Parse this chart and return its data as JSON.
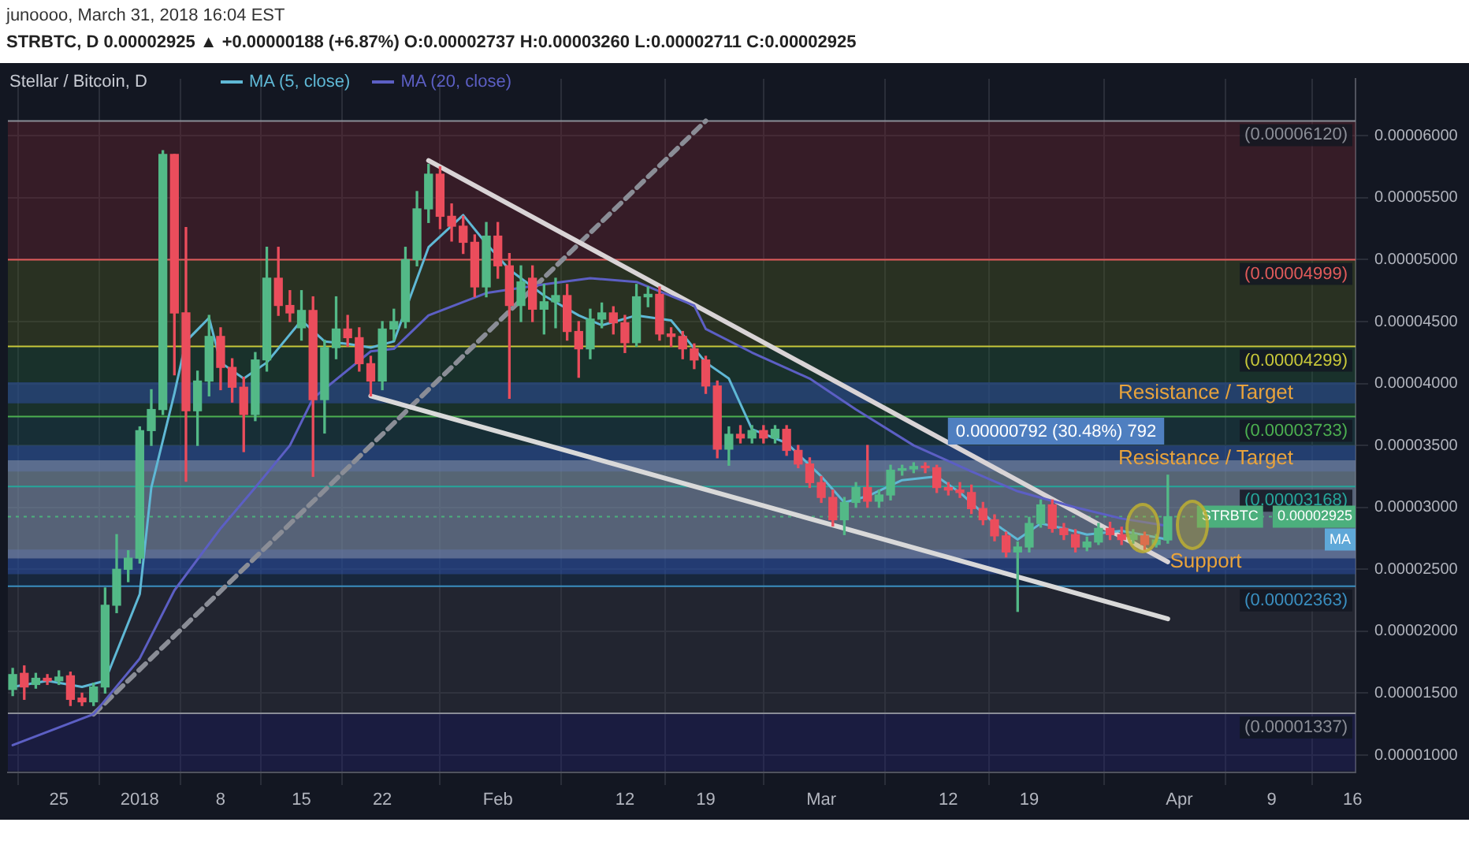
{
  "chart_data": {
    "type": "candlestick",
    "title": "Stellar / Bitcoin, D",
    "subtitle": "junoooo, March 31, 2018 16:04 EST",
    "annotations": [
      "STRBTC, D 0.00002925 ▲ +0.00000188 (+6.87%) O:0.00002737 H:0.00003260 L:0.00002711 C:0.00002925",
      {
        "text": "STRBTC",
        "x": "2018-04-08T06:00",
        "y": 2.925e-05
      },
      {
        "text": "MA",
        "x": "2018-04-16T06:00",
        "y": 2.74e-05
      }
    ],
    "x": [
      "2017-12-21",
      "2017-12-22",
      "2017-12-23",
      "2017-12-24",
      "2017-12-25",
      "2017-12-26",
      "2017-12-27",
      "2017-12-28",
      "2017-12-29",
      "2017-12-30",
      "2017-12-31",
      "2018-01-01",
      "2018-01-02",
      "2018-01-03",
      "2018-01-04",
      "2018-01-05",
      "2018-01-06",
      "2018-01-07",
      "2018-01-08",
      "2018-01-09",
      "2018-01-10",
      "2018-01-11",
      "2018-01-12",
      "2018-01-13",
      "2018-01-14",
      "2018-01-15",
      "2018-01-16",
      "2018-01-17",
      "2018-01-18",
      "2018-01-19",
      "2018-01-20",
      "2018-01-21",
      "2018-01-22",
      "2018-01-23",
      "2018-01-24",
      "2018-01-25",
      "2018-01-26",
      "2018-01-27",
      "2018-01-28",
      "2018-01-29",
      "2018-01-30",
      "2018-01-31",
      "2018-02-01",
      "2018-02-02",
      "2018-02-03",
      "2018-02-04",
      "2018-02-05",
      "2018-02-06",
      "2018-02-07",
      "2018-02-08",
      "2018-02-09",
      "2018-02-10",
      "2018-02-11",
      "2018-02-12",
      "2018-02-13",
      "2018-02-14",
      "2018-02-15",
      "2018-02-16",
      "2018-02-17",
      "2018-02-18",
      "2018-02-19",
      "2018-02-20",
      "2018-02-21",
      "2018-02-22",
      "2018-02-23",
      "2018-02-24",
      "2018-02-25",
      "2018-02-26",
      "2018-02-27",
      "2018-02-28",
      "2018-03-01",
      "2018-03-02",
      "2018-03-03",
      "2018-03-04",
      "2018-03-05",
      "2018-03-06",
      "2018-03-07",
      "2018-03-08",
      "2018-03-09",
      "2018-03-10",
      "2018-03-11",
      "2018-03-12",
      "2018-03-13",
      "2018-03-14",
      "2018-03-15",
      "2018-03-16",
      "2018-03-17",
      "2018-03-18",
      "2018-03-19",
      "2018-03-20",
      "2018-03-21",
      "2018-03-22",
      "2018-03-23",
      "2018-03-24",
      "2018-03-25",
      "2018-03-26",
      "2018-03-27",
      "2018-03-28",
      "2018-03-29",
      "2018-03-30",
      "2018-03-31"
    ],
    "ohlc": [
      [
        1.53e-05,
        1.7e-05,
        1.48e-05,
        1.65e-05
      ],
      [
        1.66e-05,
        1.72e-05,
        1.45e-05,
        1.55e-05
      ],
      [
        1.57e-05,
        1.66e-05,
        1.54e-05,
        1.62e-05
      ],
      [
        1.62e-05,
        1.65e-05,
        1.57e-05,
        1.6e-05
      ],
      [
        1.6e-05,
        1.68e-05,
        1.57e-05,
        1.63e-05
      ],
      [
        1.64e-05,
        1.67e-05,
        1.4e-05,
        1.45e-05
      ],
      [
        1.46e-05,
        1.5e-05,
        1.4e-05,
        1.43e-05
      ],
      [
        1.43e-05,
        1.58e-05,
        1.4e-05,
        1.55e-05
      ],
      [
        1.55e-05,
        2.35e-05,
        1.5e-05,
        2.21e-05
      ],
      [
        2.21e-05,
        2.78e-05,
        2.15e-05,
        2.5e-05
      ],
      [
        2.5e-05,
        2.65e-05,
        2.4e-05,
        2.59e-05
      ],
      [
        2.59e-05,
        3.65e-05,
        2.55e-05,
        3.62e-05
      ],
      [
        3.62e-05,
        3.95e-05,
        3.5e-05,
        3.79e-05
      ],
      [
        3.79e-05,
        5.88e-05,
        3.75e-05,
        5.85e-05
      ],
      [
        5.85e-05,
        5.85e-05,
        4.07e-05,
        4.57e-05
      ],
      [
        4.57e-05,
        5.26e-05,
        3.21e-05,
        3.78e-05
      ],
      [
        3.78e-05,
        4.1e-05,
        3.5e-05,
        4.02e-05
      ],
      [
        4.02e-05,
        4.55e-05,
        3.9e-05,
        4.38e-05
      ],
      [
        4.38e-05,
        4.45e-05,
        3.95e-05,
        4.13e-05
      ],
      [
        4.13e-05,
        4.2e-05,
        3.85e-05,
        3.97e-05
      ],
      [
        3.97e-05,
        4.05e-05,
        3.45e-05,
        3.75e-05
      ],
      [
        3.75e-05,
        4.25e-05,
        3.7e-05,
        4.19e-05
      ],
      [
        4.19e-05,
        5.1e-05,
        4.1e-05,
        4.85e-05
      ],
      [
        4.85e-05,
        5.1e-05,
        4.55e-05,
        4.63e-05
      ],
      [
        4.63e-05,
        4.75e-05,
        4.5e-05,
        4.57e-05
      ],
      [
        4.45e-05,
        4.75e-05,
        4.35e-05,
        4.59e-05
      ],
      [
        4.59e-05,
        4.7e-05,
        3.25e-05,
        3.87e-05
      ],
      [
        3.87e-05,
        4.35e-05,
        3.6e-05,
        4.29e-05
      ],
      [
        4.29e-05,
        4.7e-05,
        4.2e-05,
        4.44e-05
      ],
      [
        4.44e-05,
        4.55e-05,
        4.3e-05,
        4.37e-05
      ],
      [
        4.37e-05,
        4.45e-05,
        4.1e-05,
        4.16e-05
      ],
      [
        4.16e-05,
        4.22e-05,
        3.9e-05,
        4.02e-05
      ],
      [
        4.02e-05,
        4.5e-05,
        3.95e-05,
        4.44e-05
      ],
      [
        4.44e-05,
        4.6e-05,
        4.35e-05,
        4.5e-05
      ],
      [
        4.5e-05,
        5.1e-05,
        4.45e-05,
        5e-05
      ],
      [
        5e-05,
        5.55e-05,
        4.95e-05,
        5.41e-05
      ],
      [
        5.41e-05,
        5.77e-05,
        5.3e-05,
        5.69e-05
      ],
      [
        5.69e-05,
        5.75e-05,
        5.25e-05,
        5.35e-05
      ],
      [
        5.35e-05,
        5.45e-05,
        5.15e-05,
        5.27e-05
      ],
      [
        5.27e-05,
        5.35e-05,
        5.05e-05,
        5.14e-05
      ],
      [
        5.14e-05,
        5.2e-05,
        4.7e-05,
        4.78e-05
      ],
      [
        4.78e-05,
        5.3e-05,
        4.7e-05,
        5.19e-05
      ],
      [
        5.19e-05,
        5.3e-05,
        4.85e-05,
        4.95e-05
      ],
      [
        4.95e-05,
        5.05e-05,
        3.88e-05,
        4.63e-05
      ],
      [
        4.63e-05,
        4.95e-05,
        4.5e-05,
        4.82e-05
      ],
      [
        4.85e-05,
        4.95e-05,
        4.5e-05,
        4.6e-05
      ],
      [
        4.6e-05,
        4.8e-05,
        4.4e-05,
        4.66e-05
      ],
      [
        4.66e-05,
        4.85e-05,
        4.45e-05,
        4.71e-05
      ],
      [
        4.71e-05,
        4.8e-05,
        4.35e-05,
        4.42e-05
      ],
      [
        4.42e-05,
        4.5e-05,
        4.05e-05,
        4.28e-05
      ],
      [
        4.28e-05,
        4.6e-05,
        4.2e-05,
        4.52e-05
      ],
      [
        4.52e-05,
        4.65e-05,
        4.45e-05,
        4.57e-05
      ],
      [
        4.57e-05,
        4.62e-05,
        4.4e-05,
        4.49e-05
      ],
      [
        4.49e-05,
        4.55e-05,
        4.25e-05,
        4.33e-05
      ],
      [
        4.33e-05,
        4.8e-05,
        4.3e-05,
        4.7e-05
      ],
      [
        4.7e-05,
        4.78e-05,
        4.62e-05,
        4.72e-05
      ],
      [
        4.72e-05,
        4.78e-05,
        4.35e-05,
        4.4e-05
      ],
      [
        4.4e-05,
        4.45e-05,
        4.3e-05,
        4.38e-05
      ],
      [
        4.38e-05,
        4.42e-05,
        4.2e-05,
        4.28e-05
      ],
      [
        4.28e-05,
        4.32e-05,
        4.12e-05,
        4.19e-05
      ],
      [
        4.19e-05,
        4.22e-05,
        3.92e-05,
        3.98e-05
      ],
      [
        3.98e-05,
        4.02e-05,
        3.4e-05,
        3.47e-05
      ],
      [
        3.47e-05,
        3.65e-05,
        3.34e-05,
        3.59e-05
      ],
      [
        3.59e-05,
        3.66e-05,
        3.52e-05,
        3.56e-05
      ],
      [
        3.56e-05,
        3.66e-05,
        3.52e-05,
        3.62e-05
      ],
      [
        3.62e-05,
        3.66e-05,
        3.52e-05,
        3.56e-05
      ],
      [
        3.56e-05,
        3.66e-05,
        3.52e-05,
        3.63e-05
      ],
      [
        3.63e-05,
        3.66e-05,
        3.42e-05,
        3.46e-05
      ],
      [
        3.46e-05,
        3.5e-05,
        3.32e-05,
        3.35e-05
      ],
      [
        3.35e-05,
        3.4e-05,
        3.16e-05,
        3.2e-05
      ],
      [
        3.2e-05,
        3.25e-05,
        3.04e-05,
        3.08e-05
      ],
      [
        3.08e-05,
        3.14e-05,
        2.85e-05,
        2.9e-05
      ],
      [
        2.9e-05,
        3.08e-05,
        2.78e-05,
        3.04e-05
      ],
      [
        3.04e-05,
        3.2e-05,
        3e-05,
        3.16e-05
      ],
      [
        3.16e-05,
        3.5e-05,
        3e-05,
        3.05e-05
      ],
      [
        3.05e-05,
        3.14e-05,
        3e-05,
        3.1e-05
      ],
      [
        3.1e-05,
        3.34e-05,
        3.06e-05,
        3.3e-05
      ],
      [
        3.3e-05,
        3.34e-05,
        3.26e-05,
        3.31e-05
      ],
      [
        3.31e-05,
        3.36e-05,
        3.28e-05,
        3.33e-05
      ],
      [
        3.33e-05,
        3.36e-05,
        3.28e-05,
        3.32e-05
      ],
      [
        3.32e-05,
        3.34e-05,
        3.12e-05,
        3.16e-05
      ],
      [
        3.16e-05,
        3.2e-05,
        3.1e-05,
        3.14e-05
      ],
      [
        3.14e-05,
        3.2e-05,
        3.08e-05,
        3.12e-05
      ],
      [
        3.12e-05,
        3.18e-05,
        2.95e-05,
        2.99e-05
      ],
      [
        2.99e-05,
        3.04e-05,
        2.86e-05,
        2.9e-05
      ],
      [
        2.9e-05,
        2.94e-05,
        2.73e-05,
        2.77e-05
      ],
      [
        2.77e-05,
        2.8e-05,
        2.6e-05,
        2.64e-05
      ],
      [
        2.64e-05,
        2.72e-05,
        2.16e-05,
        2.68e-05
      ],
      [
        2.68e-05,
        2.92e-05,
        2.64e-05,
        2.87e-05
      ],
      [
        2.87e-05,
        3.06e-05,
        2.84e-05,
        3.02e-05
      ],
      [
        3.02e-05,
        3.06e-05,
        2.8e-05,
        2.83e-05
      ],
      [
        2.83e-05,
        2.87e-05,
        2.74e-05,
        2.78e-05
      ],
      [
        2.78e-05,
        2.82e-05,
        2.64e-05,
        2.68e-05
      ],
      [
        2.68e-05,
        2.76e-05,
        2.65e-05,
        2.72e-05
      ],
      [
        2.72e-05,
        2.87e-05,
        2.7e-05,
        2.83e-05
      ],
      [
        2.83e-05,
        2.88e-05,
        2.74e-05,
        2.78e-05
      ],
      [
        2.78e-05,
        2.84e-05,
        2.7e-05,
        2.74e-05
      ],
      [
        2.74e-05,
        2.82e-05,
        2.71e-05,
        2.78e-05
      ],
      [
        2.77e-05,
        2.8e-05,
        2.66e-05,
        2.7e-05
      ],
      [
        2.7e-05,
        2.78e-05,
        2.68e-05,
        2.737e-05
      ],
      [
        2.737e-05,
        3.26e-05,
        2.711e-05,
        2.925e-05
      ]
    ],
    "colors": [
      "#53b987",
      "#eb4d5c",
      "#53b987",
      "#eb4d5c",
      "#53b987",
      "#eb4d5c",
      "#eb4d5c",
      "#53b987",
      "#53b987",
      "#53b987",
      "#53b987",
      "#53b987",
      "#53b987",
      "#53b987",
      "#eb4d5c",
      "#eb4d5c",
      "#53b987",
      "#53b987",
      "#eb4d5c",
      "#eb4d5c",
      "#eb4d5c",
      "#53b987",
      "#53b987",
      "#eb4d5c",
      "#eb4d5c",
      "#53b987",
      "#eb4d5c",
      "#53b987",
      "#53b987",
      "#eb4d5c",
      "#eb4d5c",
      "#eb4d5c",
      "#53b987",
      "#53b987",
      "#53b987",
      "#53b987",
      "#53b987",
      "#eb4d5c",
      "#eb4d5c",
      "#eb4d5c",
      "#eb4d5c",
      "#53b987",
      "#eb4d5c",
      "#eb4d5c",
      "#53b987",
      "#eb4d5c",
      "#53b987",
      "#53b987",
      "#eb4d5c",
      "#eb4d5c",
      "#53b987",
      "#53b987",
      "#eb4d5c",
      "#eb4d5c",
      "#53b987",
      "#53b987",
      "#eb4d5c",
      "#eb4d5c",
      "#eb4d5c",
      "#eb4d5c",
      "#eb4d5c",
      "#eb4d5c",
      "#53b987",
      "#eb4d5c",
      "#53b987",
      "#eb4d5c",
      "#53b987",
      "#eb4d5c",
      "#eb4d5c",
      "#eb4d5c",
      "#eb4d5c",
      "#eb4d5c",
      "#53b987",
      "#53b987",
      "#eb4d5c",
      "#53b987",
      "#53b987",
      "#53b987",
      "#53b987",
      "#eb4d5c",
      "#eb4d5c",
      "#eb4d5c",
      "#eb4d5c",
      "#eb4d5c",
      "#eb4d5c",
      "#eb4d5c",
      "#eb4d5c",
      "#53b987",
      "#53b987",
      "#53b987",
      "#eb4d5c",
      "#eb4d5c",
      "#eb4d5c",
      "#53b987",
      "#53b987",
      "#eb4d5c",
      "#eb4d5c",
      "#53b987",
      "#eb4d5c",
      "#53b987",
      "#53b987"
    ],
    "series": [
      {
        "type": "line",
        "name": "MA (5, close)",
        "color": "#5fb8d5",
        "x": [
          "2017-12-21",
          "2017-12-24",
          "2017-12-27",
          "2017-12-29",
          "2018-01-01",
          "2018-01-02",
          "2018-01-04",
          "2018-01-05",
          "2018-01-07",
          "2018-01-08",
          "2018-01-10",
          "2018-01-12",
          "2018-01-15",
          "2018-01-17",
          "2018-01-19",
          "2018-01-21",
          "2018-01-23",
          "2018-01-26",
          "2018-01-29",
          "2018-01-31",
          "2018-02-02",
          "2018-02-05",
          "2018-02-08",
          "2018-02-10",
          "2018-02-13",
          "2018-02-16",
          "2018-02-19",
          "2018-02-21",
          "2018-02-23",
          "2018-02-26",
          "2018-03-01",
          "2018-03-03",
          "2018-03-05",
          "2018-03-08",
          "2018-03-11",
          "2018-03-13",
          "2018-03-16",
          "2018-03-18",
          "2018-03-20",
          "2018-03-22",
          "2018-03-24",
          "2018-03-27",
          "2018-03-31"
        ],
        "values": [
          1.55e-05,
          1.6e-05,
          1.55e-05,
          1.6e-05,
          2.3e-05,
          3.16e-05,
          3.92e-05,
          4.34e-05,
          4.53e-05,
          4.17e-05,
          4.04e-05,
          4.17e-05,
          4.51e-05,
          4.34e-05,
          4.32e-05,
          4.29e-05,
          4.34e-05,
          5.1e-05,
          5.36e-05,
          5.13e-05,
          4.92e-05,
          4.71e-05,
          4.55e-05,
          4.47e-05,
          4.55e-05,
          4.51e-05,
          4.17e-05,
          4.04e-05,
          3.63e-05,
          3.52e-05,
          3.25e-05,
          3.04e-05,
          3.09e-05,
          3.22e-05,
          3.25e-05,
          3.12e-05,
          2.87e-05,
          2.74e-05,
          2.87e-05,
          2.83e-05,
          2.78e-05,
          2.81e-05,
          2.74e-05
        ]
      },
      {
        "type": "line",
        "name": "MA (20, close)",
        "color": "#5c5fc4",
        "x": [
          "2017-12-21",
          "2017-12-28",
          "2018-01-01",
          "2018-01-04",
          "2018-01-08",
          "2018-01-11",
          "2018-01-14",
          "2018-01-16",
          "2018-01-21",
          "2018-01-23",
          "2018-01-26",
          "2018-01-31",
          "2018-02-05",
          "2018-02-09",
          "2018-02-13",
          "2018-02-18",
          "2018-02-19",
          "2018-02-23",
          "2018-02-28",
          "2018-03-04",
          "2018-03-09",
          "2018-03-14",
          "2018-03-18",
          "2018-03-23",
          "2018-03-27",
          "2018-03-31"
        ],
        "values": [
          1.08e-05,
          1.33e-05,
          1.78e-05,
          2.33e-05,
          2.83e-05,
          3.16e-05,
          3.5e-05,
          3.88e-05,
          4.26e-05,
          4.28e-05,
          4.55e-05,
          4.73e-05,
          4.8e-05,
          4.85e-05,
          4.82e-05,
          4.63e-05,
          4.44e-05,
          4.25e-05,
          4.04e-05,
          3.79e-05,
          3.5e-05,
          3.29e-05,
          3.13e-05,
          3e-05,
          2.91e-05,
          2.85e-05
        ]
      },
      {
        "type": "line",
        "color": "#d9d4d6",
        "x": [
          "2018-01-26",
          "2018-03-31"
        ],
        "values": [
          5.8e-05,
          2.56e-05
        ]
      },
      {
        "type": "line",
        "color": "#d9d9d9",
        "x": [
          "2018-01-21",
          "2018-03-31"
        ],
        "values": [
          3.9e-05,
          2.1e-05
        ]
      },
      {
        "type": "line",
        "color": "#8a8d96",
        "line_style": "dashed",
        "x": [
          "2017-12-28",
          "2018-02-19"
        ],
        "values": [
          1.33e-05,
          6.12e-05
        ]
      }
    ],
    "bands": [
      {
        "axis": "y",
        "from": 4.999e-05,
        "to": 6.12e-05,
        "color": "#6b2530"
      },
      {
        "axis": "y",
        "from": 4.299e-05,
        "to": 4.999e-05,
        "color": "#4a5a22"
      },
      {
        "axis": "y",
        "from": 3.733e-05,
        "to": 4.299e-05,
        "color": "#22593a"
      },
      {
        "axis": "y",
        "from": 3.168e-05,
        "to": 3.733e-05,
        "color": "#1f5356"
      },
      {
        "axis": "y",
        "from": 2.363e-05,
        "to": 3.168e-05,
        "color": "#1f4266"
      },
      {
        "axis": "y",
        "from": 1.337e-05,
        "to": 2.363e-05,
        "color": "#3a3d46"
      },
      {
        "axis": "y",
        "from": 8.7e-06,
        "to": 1.337e-05,
        "color": "#25266e"
      },
      {
        "axis": "y",
        "from": 3.84e-05,
        "to": 4.01e-05,
        "label": "Resistance / Target",
        "color": "#2d4c9e"
      },
      {
        "axis": "y",
        "from": 3.29e-05,
        "to": 3.5e-05,
        "label": "Resistance / Target",
        "color": "#2d4c9e"
      },
      {
        "axis": "y",
        "from": 2.46e-05,
        "to": 2.66e-05,
        "label": "Support",
        "color": "#2d4c9e"
      },
      {
        "axis": "y",
        "from": 2.588e-05,
        "to": 3.38e-05,
        "label": "0.00000792 (30.48%) 792",
        "color": "#8a93a8"
      }
    ],
    "ref_lines": [
      {
        "axis": "y",
        "value": 6.12e-05,
        "label": "(0.00006120)",
        "color": "#8a8d96"
      },
      {
        "axis": "y",
        "value": 4.999e-05,
        "label": "(0.00004999)",
        "color": "#e05a5a"
      },
      {
        "axis": "y",
        "value": 4.299e-05,
        "label": "(0.00004299)",
        "color": "#c8c83a"
      },
      {
        "axis": "y",
        "value": 3.733e-05,
        "label": "(0.00003733)",
        "color": "#4caf50"
      },
      {
        "axis": "y",
        "value": 3.168e-05,
        "label": "(0.00003168)",
        "color": "#26a69a"
      },
      {
        "axis": "y",
        "value": 2.363e-05,
        "label": "(0.00002363)",
        "color": "#3a8fc0"
      },
      {
        "axis": "y",
        "value": 1.337e-05,
        "label": "(0.00001337)",
        "color": "#8a8d96"
      },
      {
        "axis": "y",
        "value": 2.925e-05,
        "label": "0.00002925",
        "color": "#4caf7d",
        "line_style": "dotted"
      }
    ],
    "xlim": [
      "2017-12-20T14:00",
      "2018-04-16T06:00"
    ],
    "xticks": [
      {
        "value": "2017-12-25",
        "label": "25"
      },
      {
        "value": "2018-01-01",
        "label": "2018"
      },
      {
        "value": "2018-01-08",
        "label": "8"
      },
      {
        "value": "2018-01-15",
        "label": "15"
      },
      {
        "value": "2018-01-22",
        "label": "22"
      },
      {
        "value": "2018-02-01",
        "label": "Feb"
      },
      {
        "value": "2018-02-12",
        "label": "12"
      },
      {
        "value": "2018-02-19",
        "label": "19"
      },
      {
        "value": "2018-03-01",
        "label": "Mar"
      },
      {
        "value": "2018-03-12",
        "label": "12"
      },
      {
        "value": "2018-03-19",
        "label": "19"
      },
      {
        "value": "2018-04-01",
        "label": "Apr"
      },
      {
        "value": "2018-04-09",
        "label": "9"
      },
      {
        "value": "2018-04-16",
        "label": "16"
      }
    ],
    "ylim": [
      8.6e-06,
      6.46e-05
    ],
    "yticks": [
      {
        "value": 1e-05,
        "label": "0.00001000"
      },
      {
        "value": 1.5e-05,
        "label": "0.00001500"
      },
      {
        "value": 2e-05,
        "label": "0.00002000"
      },
      {
        "value": 2.5e-05,
        "label": "0.00002500"
      },
      {
        "value": 3e-05,
        "label": "0.00003000"
      },
      {
        "value": 3.5e-05,
        "label": "0.00003500"
      },
      {
        "value": 4e-05,
        "label": "0.00004000"
      },
      {
        "value": 4.5e-05,
        "label": "0.00004500"
      },
      {
        "value": 5e-05,
        "label": "0.00005000"
      },
      {
        "value": 5.5e-05,
        "label": "0.00005500"
      },
      {
        "value": 6e-05,
        "label": "0.00006000"
      }
    ],
    "grid": true,
    "legend": "top left",
    "marker": "none"
  }
}
